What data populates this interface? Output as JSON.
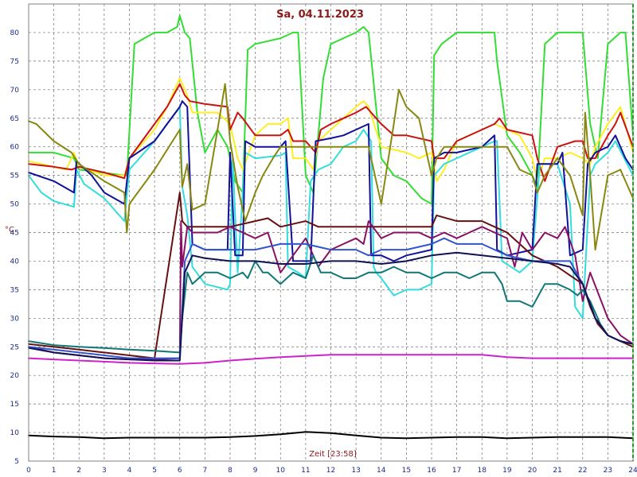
{
  "chart_data": {
    "type": "line",
    "title": "Sa, 04.11.2023",
    "xlabel": "Zeit [23:58]",
    "ylabel": "°C",
    "xlim": [
      0,
      24
    ],
    "ylim": [
      5,
      85
    ],
    "xticks": [
      0,
      1,
      2,
      3,
      4,
      5,
      6,
      7,
      8,
      9,
      10,
      11,
      12,
      13,
      14,
      15,
      16,
      17,
      18,
      19,
      20,
      21,
      22,
      23,
      24
    ],
    "yticks": [
      5,
      10,
      15,
      20,
      25,
      30,
      35,
      40,
      45,
      50,
      55,
      60,
      65,
      70,
      75,
      80
    ],
    "grid": true,
    "legend": "none",
    "series": [
      {
        "color": "#33dd33",
        "x": [
          0,
          1,
          1.8,
          2,
          3.8,
          3.9,
          4.2,
          5,
          5.5,
          5.9,
          6.0,
          6.2,
          6.4,
          6.7,
          7.0,
          7.5,
          7.9,
          8.2,
          8.5,
          8.7,
          9,
          10,
          10.5,
          10.7,
          11.0,
          11.3,
          11.7,
          12,
          13,
          13.3,
          13.5,
          14,
          14.5,
          15,
          15.6,
          16.0,
          16.1,
          16.4,
          17,
          18,
          18.5,
          18.6,
          19,
          19.5,
          20,
          20.2,
          20.5,
          21.0,
          21.5,
          22,
          22.3,
          22.6,
          23,
          23.5,
          23.7,
          24
        ],
        "y": [
          59,
          59,
          58,
          56,
          55,
          55,
          78,
          80,
          80,
          81,
          83,
          80,
          79,
          66,
          59,
          63,
          60,
          54,
          52,
          77,
          78,
          79,
          80,
          80,
          55,
          52,
          72,
          78,
          80,
          81,
          80,
          58,
          55,
          54,
          51,
          50,
          76,
          78,
          80,
          80,
          80,
          75,
          62,
          59,
          55,
          53,
          78,
          80,
          80,
          80,
          64,
          58,
          78,
          80,
          80,
          62
        ]
      },
      {
        "color": "#ffee22",
        "x": [
          0,
          1.5,
          1.8,
          2,
          3,
          3.8,
          4,
          5,
          5.5,
          6.0,
          6.3,
          6.5,
          7,
          7.5,
          8,
          8.3,
          8.5,
          9,
          9.5,
          10,
          10.3,
          10.5,
          11,
          11.3,
          11.5,
          12,
          12.5,
          13,
          13.3,
          13.5,
          14,
          15,
          15.5,
          16,
          16.2,
          16.5,
          17,
          18,
          18.5,
          19,
          19.5,
          20,
          20.2,
          20.5,
          21,
          21.5,
          22,
          22.3,
          22.5,
          23,
          23.5,
          24
        ],
        "y": [
          57.5,
          56,
          59,
          56.5,
          55,
          55,
          58,
          63,
          67,
          72,
          69,
          66,
          66,
          66,
          64,
          58,
          56,
          62,
          64,
          64,
          65,
          58,
          58,
          56,
          61,
          63,
          65,
          67,
          68,
          67,
          60,
          59,
          58,
          59,
          54,
          56,
          61,
          63,
          64,
          63,
          62,
          58,
          54,
          58,
          58,
          59,
          58,
          57,
          60,
          64,
          67,
          59
        ]
      },
      {
        "color": "#cc1111",
        "x": [
          0,
          1,
          1.7,
          2,
          3,
          3.8,
          4,
          5,
          5.5,
          6.0,
          6.2,
          6.4,
          7,
          7.9,
          8,
          8.3,
          8.5,
          9,
          10,
          10.3,
          10.5,
          11,
          11.4,
          11.6,
          12,
          12.5,
          13,
          13.4,
          13.6,
          14,
          14.5,
          15,
          16,
          16.1,
          16.5,
          17,
          18,
          18.5,
          18.7,
          19,
          20,
          20.2,
          20.5,
          21,
          21.7,
          22,
          22.2,
          22.5,
          23,
          23.3,
          23.5,
          24
        ],
        "y": [
          57,
          56.5,
          56,
          56.5,
          55.5,
          54.5,
          58,
          64,
          67,
          71,
          69,
          68,
          67.5,
          67,
          63,
          66,
          65,
          62,
          62,
          63,
          61,
          61,
          59,
          63,
          64,
          65,
          66,
          67,
          66,
          64,
          62,
          62,
          61,
          58,
          58,
          61,
          63,
          64,
          65,
          63,
          62,
          58,
          54,
          60,
          61,
          61,
          58,
          58,
          62,
          64,
          66,
          60
        ]
      },
      {
        "color": "#33dddd",
        "x": [
          0,
          0.5,
          1,
          1.8,
          1.9,
          2.2,
          3,
          3.8,
          4,
          5,
          5.5,
          6.0,
          6.1,
          6.3,
          6.5,
          7,
          7.9,
          8,
          8.1,
          8.3,
          8.6,
          9,
          10,
          10.2,
          10.3,
          10.7,
          11.0,
          11.2,
          11.5,
          12,
          12.5,
          13,
          13.3,
          13.6,
          13.7,
          13.8,
          14,
          14.5,
          15,
          15.5,
          16,
          16.1,
          16.5,
          17,
          18,
          18.5,
          18.6,
          18.8,
          19.5,
          20,
          20.3,
          20.5,
          21,
          21.5,
          21.7,
          22,
          22.3,
          22.5,
          23,
          23.3,
          24
        ],
        "y": [
          55,
          52,
          50.5,
          49.5,
          56,
          53.5,
          51,
          47,
          56,
          61,
          64,
          67,
          53,
          48,
          39,
          36,
          35,
          36,
          58,
          38,
          59,
          58,
          58.5,
          59,
          39,
          38,
          37,
          54,
          56,
          57,
          60,
          61,
          63,
          61,
          39,
          38,
          37,
          34,
          35,
          35,
          36,
          55,
          57,
          58,
          60,
          61,
          61,
          40,
          38,
          40,
          57,
          57,
          57,
          50,
          32,
          30,
          55,
          57,
          59,
          61,
          55
        ]
      },
      {
        "color": "#111199",
        "x": [
          0,
          1,
          1.8,
          1.9,
          2.5,
          3,
          3.8,
          4,
          5,
          5.5,
          6.0,
          6.1,
          6.3,
          6.5,
          7,
          7.9,
          8.0,
          8.2,
          8.5,
          8.6,
          9,
          10,
          10.2,
          10.5,
          11.0,
          11.2,
          11.4,
          12,
          12.5,
          13,
          13.5,
          13.6,
          14,
          14.5,
          15,
          16,
          16.1,
          16.5,
          17,
          18,
          18.5,
          18.6,
          19,
          20,
          20.2,
          20.5,
          21,
          21.2,
          21.5,
          22,
          22.2,
          22.5,
          23,
          23.3,
          23.7,
          24
        ],
        "y": [
          55.5,
          54,
          52,
          57.5,
          55,
          52,
          50,
          58,
          61,
          64,
          67,
          68,
          67,
          43,
          42,
          42,
          59,
          41,
          41,
          61,
          60,
          60,
          61,
          40,
          40,
          40,
          61,
          61.5,
          62,
          63,
          64,
          41,
          41,
          40,
          41,
          42,
          58,
          59,
          59,
          60,
          62,
          42,
          41,
          42,
          57,
          57,
          57,
          59,
          41,
          42,
          57,
          59,
          60,
          62,
          58,
          56
        ]
      },
      {
        "color": "#888811",
        "x": [
          0,
          0.3,
          1,
          1.7,
          2,
          3,
          3.8,
          3.9,
          4,
          5,
          6.0,
          6.1,
          6.3,
          6.5,
          7,
          7.5,
          7.8,
          8,
          8.3,
          8.6,
          9,
          9.3,
          9.7,
          10,
          10.5,
          11,
          11.5,
          12,
          12.5,
          13,
          13.5,
          14,
          14.5,
          14.7,
          15,
          15.5,
          16,
          16.2,
          16.5,
          17,
          18.5,
          19,
          19.5,
          20,
          20.2,
          20.5,
          21,
          21.5,
          22,
          22.1,
          22.3,
          22.5,
          23,
          23.5,
          24
        ],
        "y": [
          64.5,
          64,
          61,
          59,
          57,
          54,
          52,
          45,
          50,
          56,
          63,
          53,
          57,
          49,
          50,
          63,
          71,
          61,
          53,
          47,
          52,
          55,
          58,
          60,
          60,
          60,
          60,
          60,
          60,
          60,
          60,
          50,
          64,
          70,
          67,
          65,
          55,
          58,
          60,
          60,
          60,
          60,
          56,
          55,
          52,
          55,
          58,
          55,
          48,
          66,
          55,
          42,
          55,
          56,
          51
        ]
      },
      {
        "color": "#661111",
        "x": [
          0,
          1,
          2,
          3,
          4,
          5,
          6.0,
          6.1,
          6.3,
          6.5,
          7,
          8,
          9,
          9.5,
          10,
          11,
          11.5,
          12,
          13,
          14,
          15,
          16,
          16.2,
          17,
          18,
          18.5,
          19,
          19.5,
          20,
          21,
          21.5,
          22,
          22.3,
          22.6,
          23,
          23.5,
          24
        ],
        "y": [
          25.5,
          25,
          24.5,
          24,
          23.5,
          23,
          52,
          47,
          46,
          46,
          46,
          46,
          47,
          47.5,
          46,
          47,
          46,
          46,
          46,
          46,
          46,
          46,
          48,
          47,
          47,
          46,
          45,
          43,
          41,
          39,
          37.5,
          36,
          32,
          29,
          27,
          26,
          25
        ]
      },
      {
        "color": "#881166",
        "x": [
          0,
          1,
          2,
          3,
          4,
          5,
          6.0,
          6.05,
          6.1,
          6.3,
          6.5,
          7,
          7.5,
          8,
          8.5,
          9,
          9.5,
          10,
          10.5,
          11,
          11.5,
          12,
          12.5,
          13,
          13.3,
          13.5,
          14,
          14.5,
          15,
          15.5,
          16,
          16.5,
          17,
          17.5,
          18,
          18.5,
          19,
          19.3,
          19.6,
          20,
          20.5,
          21,
          21.3,
          21.7,
          22,
          22.3,
          23,
          23.5,
          24
        ],
        "y": [
          25,
          24,
          23.5,
          23,
          22.8,
          22.8,
          23,
          47,
          39,
          46,
          45,
          45,
          45,
          46,
          45,
          44,
          45,
          38,
          41,
          44,
          39,
          42,
          43,
          44,
          43,
          47,
          44,
          45,
          45,
          45,
          44,
          45,
          44,
          45,
          46,
          45,
          44,
          39,
          45,
          42,
          45,
          44,
          46,
          41,
          33,
          38,
          30,
          27,
          25.5
        ]
      },
      {
        "color": "#117777",
        "x": [
          0,
          1,
          2,
          3,
          4,
          5,
          6.0,
          6.1,
          6.3,
          6.5,
          7,
          7.5,
          8,
          8.5,
          8.7,
          9,
          9.3,
          9.5,
          10,
          10.5,
          11,
          11.3,
          11.6,
          12,
          12.5,
          13,
          13.5,
          14,
          14.5,
          15,
          15.5,
          16,
          16.5,
          17,
          17.5,
          18,
          18.5,
          18.8,
          19,
          19.5,
          20,
          20.5,
          21,
          21.5,
          21.8,
          22,
          22.3,
          22.7,
          23,
          23.5,
          24
        ],
        "y": [
          26,
          25.3,
          25,
          24.8,
          24.5,
          24.3,
          24,
          30,
          38,
          36,
          38,
          38,
          37,
          38,
          37,
          40,
          38,
          38,
          36,
          38,
          37,
          41,
          38,
          38,
          37,
          37,
          38,
          38,
          39,
          38,
          38,
          37,
          38,
          38,
          37,
          38,
          38,
          36,
          33,
          33,
          32,
          36,
          36,
          35,
          34,
          35,
          33,
          29,
          27,
          26,
          25.5
        ]
      },
      {
        "color": "#3355cc",
        "x": [
          0,
          1,
          2,
          3,
          4,
          5,
          6.0,
          6.2,
          6.5,
          7,
          8,
          8.5,
          9,
          10,
          11,
          12,
          13,
          13.5,
          14,
          15,
          16,
          16.5,
          17,
          18,
          18.5,
          19,
          20,
          21,
          21.5,
          22,
          22.5,
          23,
          23.5,
          24
        ],
        "y": [
          25,
          24.5,
          24,
          23.5,
          23,
          23,
          23,
          40,
          43,
          42,
          42,
          42,
          42,
          43,
          43,
          42,
          42,
          41,
          42,
          42,
          43,
          44,
          43,
          43,
          42,
          41,
          40,
          40,
          40,
          36,
          30,
          27,
          26,
          25.5
        ]
      },
      {
        "color": "#111155",
        "x": [
          0,
          1,
          2,
          3,
          4,
          5,
          6.0,
          6.2,
          6.5,
          7,
          8,
          9,
          10,
          11,
          12,
          13,
          14,
          15,
          16,
          17,
          18,
          19,
          20,
          21,
          21.5,
          22,
          22.5,
          23,
          23.5,
          24
        ],
        "y": [
          24.8,
          24,
          23.5,
          23,
          22.8,
          22.6,
          22.6,
          38,
          41,
          40.5,
          40,
          40,
          39.5,
          39.5,
          40,
          40,
          39.5,
          40,
          41,
          41.5,
          41,
          40.5,
          40,
          39.5,
          39,
          36,
          30,
          27,
          26,
          25.5
        ]
      },
      {
        "color": "#cc22cc",
        "x": [
          0,
          1,
          2,
          3,
          4,
          5,
          6,
          7,
          8,
          9,
          10,
          11,
          12,
          13,
          14,
          15,
          16,
          17,
          18,
          18.5,
          19,
          20,
          21,
          22,
          23,
          24
        ],
        "y": [
          23,
          22.8,
          22.6,
          22.4,
          22.2,
          22.1,
          22,
          22.2,
          22.6,
          22.9,
          23.2,
          23.4,
          23.6,
          23.6,
          23.6,
          23.6,
          23.6,
          23.6,
          23.6,
          23.4,
          23.2,
          23,
          23,
          23,
          23,
          23
        ]
      },
      {
        "color": "#000000",
        "x": [
          0,
          1,
          2,
          3,
          4,
          5,
          6,
          7,
          8,
          9,
          10,
          11,
          12,
          13,
          14,
          15,
          16,
          17,
          18,
          19,
          20,
          21,
          22,
          23,
          24
        ],
        "y": [
          9.5,
          9.3,
          9.2,
          9,
          9.1,
          9.1,
          9.1,
          9.1,
          9.2,
          9.4,
          9.7,
          10.1,
          9.9,
          9.5,
          9.1,
          9.0,
          9.1,
          9.2,
          9.2,
          9.0,
          9.1,
          9.2,
          9.2,
          9.2,
          9.0
        ]
      }
    ]
  }
}
